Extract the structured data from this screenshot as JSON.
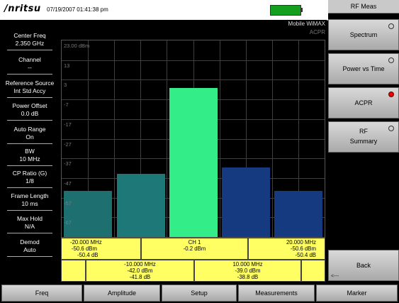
{
  "header": {
    "logo": "/nritsu",
    "datetime": "07/19/2007 01:41:38 pm"
  },
  "left_panel": [
    {
      "label": "Center Freq",
      "value": "2.350 GHz"
    },
    {
      "label": "Channel",
      "value": "--"
    },
    {
      "label": "Reference Source",
      "value": "Int Std Accy"
    },
    {
      "label": "Power Offset",
      "value": "0.0 dB"
    },
    {
      "label": "Auto Range",
      "value": "On"
    },
    {
      "label": "BW",
      "value": "10 MHz"
    },
    {
      "label": "CP Ratio (G)",
      "value": "1/8"
    },
    {
      "label": "Frame Length",
      "value": "10 ms"
    },
    {
      "label": "Max Hold",
      "value": "N/A"
    },
    {
      "label": "Demod",
      "value": "Auto"
    }
  ],
  "screen": {
    "mode": "Mobile WiMAX",
    "measurement": "ACPR"
  },
  "chart_data": {
    "type": "bar",
    "categories": [
      "-20.000 MHz",
      "-10.000 MHz",
      "CH 1",
      "10.000 MHz",
      "20.000 MHz"
    ],
    "values": [
      -50.6,
      -42.0,
      -0.2,
      -39.0,
      -50.6
    ],
    "colors": [
      "#1e7070",
      "#1e7878",
      "#33ee88",
      "#163a80",
      "#163a80"
    ],
    "ylim": [
      -73,
      23
    ],
    "y_ticks": [
      "23.00 dBm",
      "13",
      "3",
      "-7",
      "-17",
      "-27",
      "-37",
      "-47",
      "-57",
      "-67"
    ],
    "grid": true
  },
  "table_top": [
    {
      "freq": "-20.000 MHz",
      "dbm": "-50.6 dBm",
      "db": "-50.4 dB"
    },
    {
      "freq": "CH 1",
      "dbm": "-0.2 dBm",
      "db": ""
    },
    {
      "freq": "20.000 MHz",
      "dbm": "-50.6 dBm",
      "db": "-50.4 dB"
    }
  ],
  "table_bottom": [
    {
      "freq": "-10.000 MHz",
      "dbm": "-42.0 dBm",
      "db": "-41.8 dB"
    },
    {
      "freq": "10.000 MHz",
      "dbm": "-39.0 dBm",
      "db": "-38.8 dB"
    }
  ],
  "right_panel": {
    "title": "RF Meas",
    "keys": [
      {
        "label": "Spectrum",
        "sub": "",
        "active": false
      },
      {
        "label": "Power vs Time",
        "sub": "",
        "active": false
      },
      {
        "label": "ACPR",
        "sub": "",
        "active": true
      },
      {
        "label": "RF",
        "sub": "Summary",
        "active": false
      }
    ],
    "back_label": "Back",
    "back_hint": "<---"
  },
  "bottom_menu": [
    "Freq",
    "Amplitude",
    "Setup",
    "Measurements",
    "Marker"
  ]
}
